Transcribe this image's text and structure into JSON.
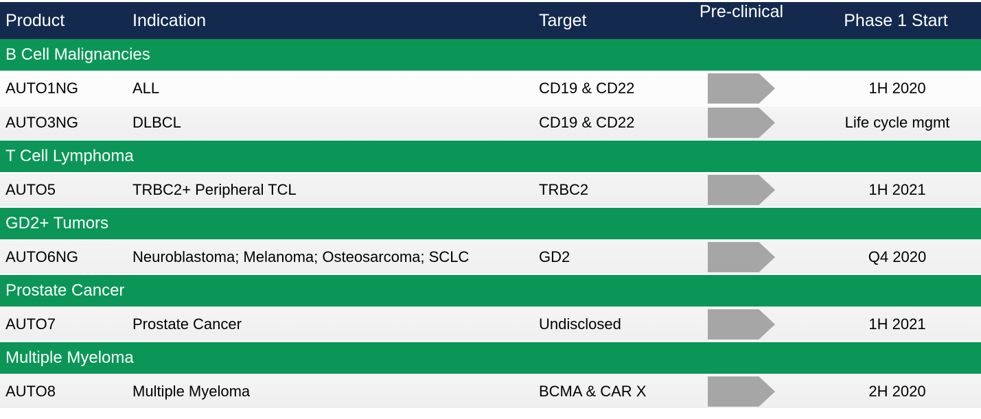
{
  "colors": {
    "header_bg": "#13294E",
    "header_text": "#FFFFFF",
    "section_bg": "#0B9658",
    "section_text": "#FFFFFF",
    "row_bg": "#EFEFEF",
    "row_alt_bg": "#FBFBFB",
    "arrow_fill": "#A6A6A6",
    "body_text": "#000000"
  },
  "table": {
    "columns": [
      "Product",
      "Indication",
      "Target",
      "Pre-clinical",
      "Phase 1 Start"
    ],
    "preclinical_stage_icon": "right-arrow",
    "sections": [
      {
        "title": "B Cell Malignancies",
        "rows": [
          {
            "product": "AUTO1NG",
            "indication": "ALL",
            "target": "CD19 & CD22",
            "preclinical_arrow": true,
            "phase1_start": "1H 2020"
          },
          {
            "product": "AUTO3NG",
            "indication": "DLBCL",
            "target": "CD19 & CD22",
            "preclinical_arrow": true,
            "phase1_start": "Life cycle mgmt"
          }
        ]
      },
      {
        "title": "T Cell Lymphoma",
        "rows": [
          {
            "product": "AUTO5",
            "indication": "TRBC2+ Peripheral TCL",
            "target": "TRBC2",
            "preclinical_arrow": true,
            "phase1_start": "1H 2021"
          }
        ]
      },
      {
        "title": "GD2+ Tumors",
        "rows": [
          {
            "product": "AUTO6NG",
            "indication": "Neuroblastoma; Melanoma;  Osteosarcoma; SCLC",
            "target": "GD2",
            "preclinical_arrow": true,
            "phase1_start": "Q4 2020"
          }
        ]
      },
      {
        "title": "Prostate Cancer",
        "rows": [
          {
            "product": "AUTO7",
            "indication": "Prostate Cancer",
            "target": "Undisclosed",
            "preclinical_arrow": true,
            "phase1_start": "1H 2021"
          }
        ]
      },
      {
        "title": "Multiple Myeloma",
        "rows": [
          {
            "product": "AUTO8",
            "indication": "Multiple Myeloma",
            "target": "BCMA & CAR X",
            "preclinical_arrow": true,
            "phase1_start": "2H 2020"
          }
        ]
      }
    ]
  }
}
